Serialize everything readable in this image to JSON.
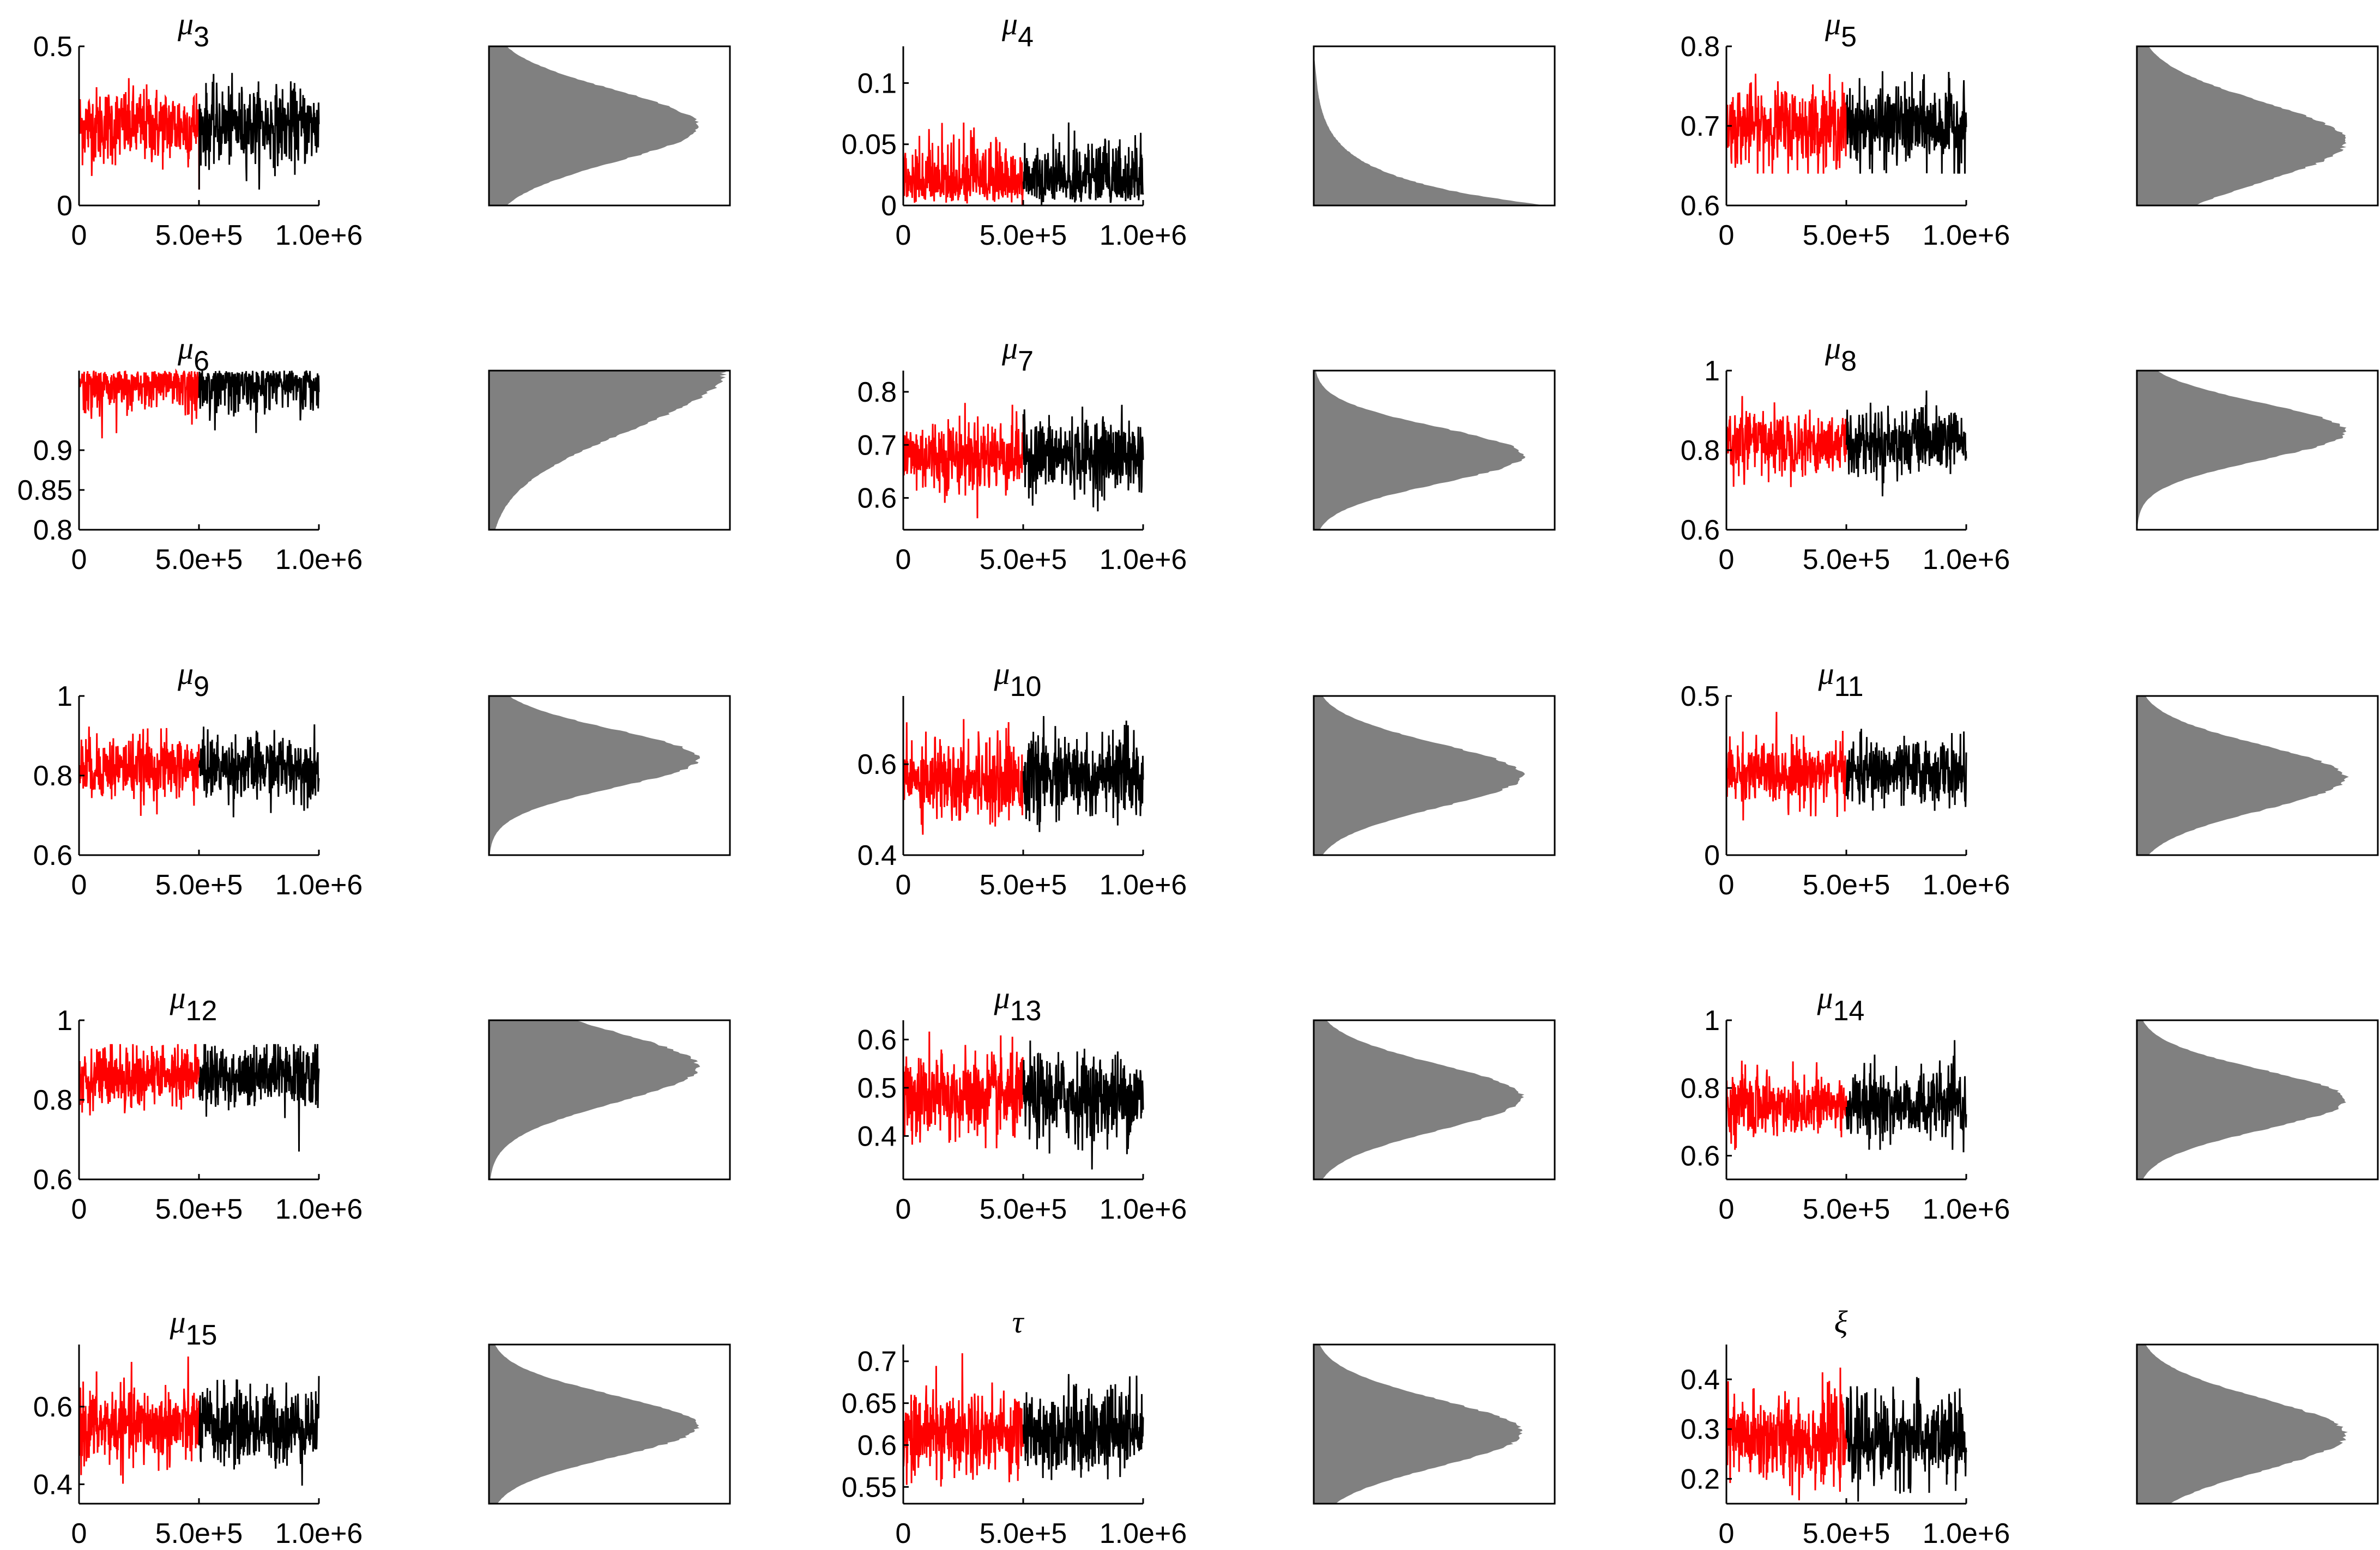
{
  "figure": {
    "colors": {
      "first_half": "#ff0000",
      "second_half": "#000000",
      "histogram": "#808080",
      "axes": "#000000"
    },
    "x_ticks": [
      "0",
      "5.0e+5",
      "1.0e+6"
    ]
  },
  "chart_data": [
    {
      "type": "trace_histogram",
      "title_base": "μ",
      "title_sub": "3",
      "xlim": [
        0,
        1000000
      ],
      "ylim": [
        0,
        0.5
      ],
      "yticks": [
        "0",
        "0.5"
      ],
      "ytick_values": [
        0,
        0.5
      ],
      "center": 0.25,
      "spread": 0.06,
      "min": 0.05,
      "max": 0.45,
      "hist_shape": "normal"
    },
    {
      "type": "trace_histogram",
      "title_base": "μ",
      "title_sub": "4",
      "xlim": [
        0,
        1000000
      ],
      "ylim": [
        0,
        0.13
      ],
      "yticks": [
        "0",
        "0.05",
        "0.1"
      ],
      "ytick_values": [
        0,
        0.05,
        0.1
      ],
      "center": 0.02,
      "spread": 0.025,
      "min": 0.0,
      "max": 0.13,
      "hist_shape": "decay"
    },
    {
      "type": "trace_histogram",
      "title_base": "μ",
      "title_sub": "5",
      "xlim": [
        0,
        1000000
      ],
      "ylim": [
        0.6,
        0.8
      ],
      "yticks": [
        "0.6",
        "0.7",
        "0.8"
      ],
      "ytick_values": [
        0.6,
        0.7,
        0.8
      ],
      "center": 0.7,
      "spread": 0.025,
      "min": 0.64,
      "max": 0.79,
      "hist_shape": "normal"
    },
    {
      "type": "trace_histogram",
      "title_base": "μ",
      "title_sub": "6",
      "xlim": [
        0,
        1000000
      ],
      "ylim": [
        0.8,
        1.0
      ],
      "yticks": [
        "0.8",
        "0.85",
        "0.9"
      ],
      "ytick_values": [
        0.8,
        0.85,
        0.9
      ],
      "center": 0.99,
      "spread": 0.025,
      "min": 0.83,
      "max": 1.0,
      "hist_shape": "ceiling"
    },
    {
      "type": "trace_histogram",
      "title_base": "μ",
      "title_sub": "7",
      "xlim": [
        0,
        1000000
      ],
      "ylim": [
        0.54,
        0.84
      ],
      "yticks": [
        "0.6",
        "0.7",
        "0.8"
      ],
      "ytick_values": [
        0.6,
        0.7,
        0.8
      ],
      "center": 0.68,
      "spread": 0.035,
      "min": 0.54,
      "max": 0.84,
      "hist_shape": "normal"
    },
    {
      "type": "trace_histogram",
      "title_base": "μ",
      "title_sub": "8",
      "xlim": [
        0,
        1000000
      ],
      "ylim": [
        0.6,
        1.0
      ],
      "yticks": [
        "0.6",
        "0.8",
        "1"
      ],
      "ytick_values": [
        0.6,
        0.8,
        1.0
      ],
      "center": 0.82,
      "spread": 0.04,
      "min": 0.61,
      "max": 0.95,
      "hist_shape": "normal"
    },
    {
      "type": "trace_histogram",
      "title_base": "μ",
      "title_sub": "9",
      "xlim": [
        0,
        1000000
      ],
      "ylim": [
        0.6,
        1.0
      ],
      "yticks": [
        "0.6",
        "0.8",
        "1"
      ],
      "ytick_values": [
        0.6,
        0.8,
        1.0
      ],
      "center": 0.82,
      "spread": 0.04,
      "min": 0.62,
      "max": 0.95,
      "hist_shape": "normal"
    },
    {
      "type": "trace_histogram",
      "title_base": "μ",
      "title_sub": "10",
      "xlim": [
        0,
        1000000
      ],
      "ylim": [
        0.4,
        0.75
      ],
      "yticks": [
        "0.4",
        "0.6"
      ],
      "ytick_values": [
        0.4,
        0.6
      ],
      "center": 0.57,
      "spread": 0.045,
      "min": 0.4,
      "max": 0.74,
      "hist_shape": "normal"
    },
    {
      "type": "trace_histogram",
      "title_base": "μ",
      "title_sub": "11",
      "xlim": [
        0,
        1000000
      ],
      "ylim": [
        0,
        0.5
      ],
      "yticks": [
        "0",
        "0.5"
      ],
      "ytick_values": [
        0,
        0.5
      ],
      "center": 0.26,
      "spread": 0.05,
      "min": 0.08,
      "max": 0.45,
      "hist_shape": "normal"
    },
    {
      "type": "trace_histogram",
      "title_base": "μ",
      "title_sub": "12",
      "xlim": [
        0,
        1000000
      ],
      "ylim": [
        0.6,
        1.0
      ],
      "yticks": [
        "0.6",
        "0.8",
        "1"
      ],
      "ytick_values": [
        0.6,
        0.8,
        1.0
      ],
      "center": 0.86,
      "spread": 0.04,
      "min": 0.67,
      "max": 0.94,
      "hist_shape": "normal"
    },
    {
      "type": "trace_histogram",
      "title_base": "μ",
      "title_sub": "13",
      "xlim": [
        0,
        1000000
      ],
      "ylim": [
        0.31,
        0.64
      ],
      "yticks": [
        "0.4",
        "0.5",
        "0.6"
      ],
      "ytick_values": [
        0.4,
        0.5,
        0.6
      ],
      "center": 0.48,
      "spread": 0.045,
      "min": 0.31,
      "max": 0.64,
      "hist_shape": "normal"
    },
    {
      "type": "trace_histogram",
      "title_base": "μ",
      "title_sub": "14",
      "xlim": [
        0,
        1000000
      ],
      "ylim": [
        0.53,
        1.0
      ],
      "yticks": [
        "0.6",
        "0.8",
        "1"
      ],
      "ytick_values": [
        0.6,
        0.8,
        1.0
      ],
      "center": 0.75,
      "spread": 0.05,
      "min": 0.55,
      "max": 0.95,
      "hist_shape": "normal"
    },
    {
      "type": "trace_histogram",
      "title_base": "μ",
      "title_sub": "15",
      "xlim": [
        0,
        1000000
      ],
      "ylim": [
        0.35,
        0.76
      ],
      "yticks": [
        "0.4",
        "0.6"
      ],
      "ytick_values": [
        0.4,
        0.6
      ],
      "center": 0.55,
      "spread": 0.05,
      "min": 0.36,
      "max": 0.75,
      "hist_shape": "normal"
    },
    {
      "type": "trace_histogram",
      "title_base": "τ",
      "title_sub": "",
      "xlim": [
        0,
        1000000
      ],
      "ylim": [
        0.53,
        0.72
      ],
      "yticks": [
        "0.55",
        "0.6",
        "0.65",
        "0.7"
      ],
      "ytick_values": [
        0.55,
        0.6,
        0.65,
        0.7
      ],
      "center": 0.615,
      "spread": 0.025,
      "min": 0.535,
      "max": 0.715,
      "hist_shape": "normal"
    },
    {
      "type": "trace_histogram",
      "title_base": "ξ",
      "title_sub": "",
      "xlim": [
        0,
        1000000
      ],
      "ylim": [
        0.15,
        0.47
      ],
      "yticks": [
        "0.2",
        "0.3",
        "0.4"
      ],
      "ytick_values": [
        0.2,
        0.3,
        0.4
      ],
      "center": 0.28,
      "spread": 0.045,
      "min": 0.15,
      "max": 0.45,
      "hist_shape": "normal"
    }
  ]
}
